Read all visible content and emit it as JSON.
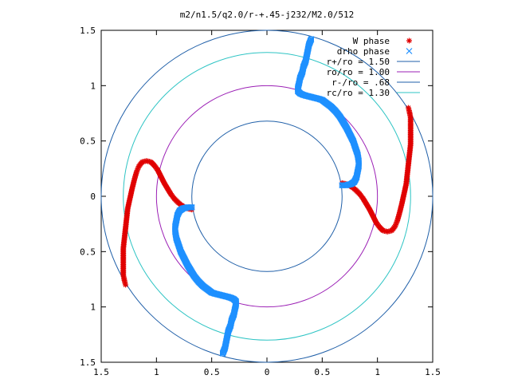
{
  "chart_data": {
    "type": "scatter",
    "title": "m2/n1.5/q2.0/r-+.45-j232/M2.0/512",
    "xlim": [
      -1.5,
      1.5
    ],
    "ylim": [
      -1.5,
      1.5
    ],
    "x_ticks": [
      {
        "value": -1.5,
        "label": "1.5"
      },
      {
        "value": -1,
        "label": "1"
      },
      {
        "value": -0.5,
        "label": "0.5"
      },
      {
        "value": 0,
        "label": "0"
      },
      {
        "value": 0.5,
        "label": "0.5"
      },
      {
        "value": 1,
        "label": "1"
      },
      {
        "value": 1.5,
        "label": "1.5"
      }
    ],
    "y_ticks": [
      {
        "value": 1.5,
        "label": "1.5"
      },
      {
        "value": 1,
        "label": "1"
      },
      {
        "value": 0.5,
        "label": "0.5"
      },
      {
        "value": 0,
        "label": "0"
      },
      {
        "value": -0.5,
        "label": "0.5"
      },
      {
        "value": -1,
        "label": "1"
      },
      {
        "value": -1.5,
        "label": "1.5"
      }
    ],
    "legend_position": "top-right",
    "circles": [
      {
        "name": "r+/ro = 1.50",
        "radius": 1.5,
        "color": "#1f5fa8"
      },
      {
        "name": "ro/ro = 1.00",
        "radius": 1.0,
        "color": "#9b1fb5"
      },
      {
        "name": "r-/ro = .68",
        "radius": 0.68,
        "color": "#1f5fa8"
      },
      {
        "name": "rc/ro = 1.30",
        "radius": 1.3,
        "color": "#2ec4c4"
      }
    ],
    "series": [
      {
        "name": "W phase",
        "marker": "plus-cross",
        "color": "#e00000",
        "symmetry": "point-reflection",
        "points": [
          [
            0.68,
            0.12
          ],
          [
            0.72,
            0.11
          ],
          [
            0.76,
            0.09
          ],
          [
            0.8,
            0.06
          ],
          [
            0.84,
            0.02
          ],
          [
            0.87,
            -0.02
          ],
          [
            0.9,
            -0.07
          ],
          [
            0.93,
            -0.12
          ],
          [
            0.96,
            -0.18
          ],
          [
            0.99,
            -0.24
          ],
          [
            1.02,
            -0.28
          ],
          [
            1.05,
            -0.31
          ],
          [
            1.09,
            -0.32
          ],
          [
            1.13,
            -0.31
          ],
          [
            1.16,
            -0.27
          ],
          [
            1.18,
            -0.22
          ],
          [
            1.2,
            -0.15
          ],
          [
            1.22,
            -0.07
          ],
          [
            1.24,
            0.02
          ],
          [
            1.26,
            0.11
          ],
          [
            1.27,
            0.2
          ],
          [
            1.28,
            0.29
          ],
          [
            1.29,
            0.38
          ],
          [
            1.3,
            0.47
          ],
          [
            1.3,
            0.56
          ],
          [
            1.3,
            0.64
          ],
          [
            1.3,
            0.71
          ],
          [
            1.29,
            0.76
          ],
          [
            1.28,
            0.8
          ]
        ]
      },
      {
        "name": "drho phase",
        "marker": "x-square",
        "color": "#1e90ff",
        "symmetry": "point-reflection",
        "points": [
          [
            0.68,
            0.1
          ],
          [
            0.72,
            0.1
          ],
          [
            0.76,
            0.11
          ],
          [
            0.79,
            0.13
          ],
          [
            0.81,
            0.17
          ],
          [
            0.82,
            0.22
          ],
          [
            0.83,
            0.27
          ],
          [
            0.83,
            0.32
          ],
          [
            0.82,
            0.38
          ],
          [
            0.8,
            0.44
          ],
          [
            0.78,
            0.5
          ],
          [
            0.75,
            0.56
          ],
          [
            0.72,
            0.62
          ],
          [
            0.69,
            0.67
          ],
          [
            0.66,
            0.72
          ],
          [
            0.62,
            0.77
          ],
          [
            0.58,
            0.81
          ],
          [
            0.54,
            0.84
          ],
          [
            0.5,
            0.87
          ],
          [
            0.47,
            0.88
          ],
          [
            0.43,
            0.89
          ],
          [
            0.39,
            0.9
          ],
          [
            0.35,
            0.91
          ],
          [
            0.32,
            0.92
          ],
          [
            0.3,
            0.93
          ],
          [
            0.28,
            0.95
          ],
          [
            0.28,
            0.98
          ],
          [
            0.29,
            1.02
          ],
          [
            0.3,
            1.07
          ],
          [
            0.32,
            1.12
          ],
          [
            0.33,
            1.17
          ],
          [
            0.35,
            1.22
          ],
          [
            0.36,
            1.27
          ],
          [
            0.37,
            1.32
          ],
          [
            0.38,
            1.37
          ],
          [
            0.4,
            1.42
          ]
        ]
      }
    ]
  }
}
